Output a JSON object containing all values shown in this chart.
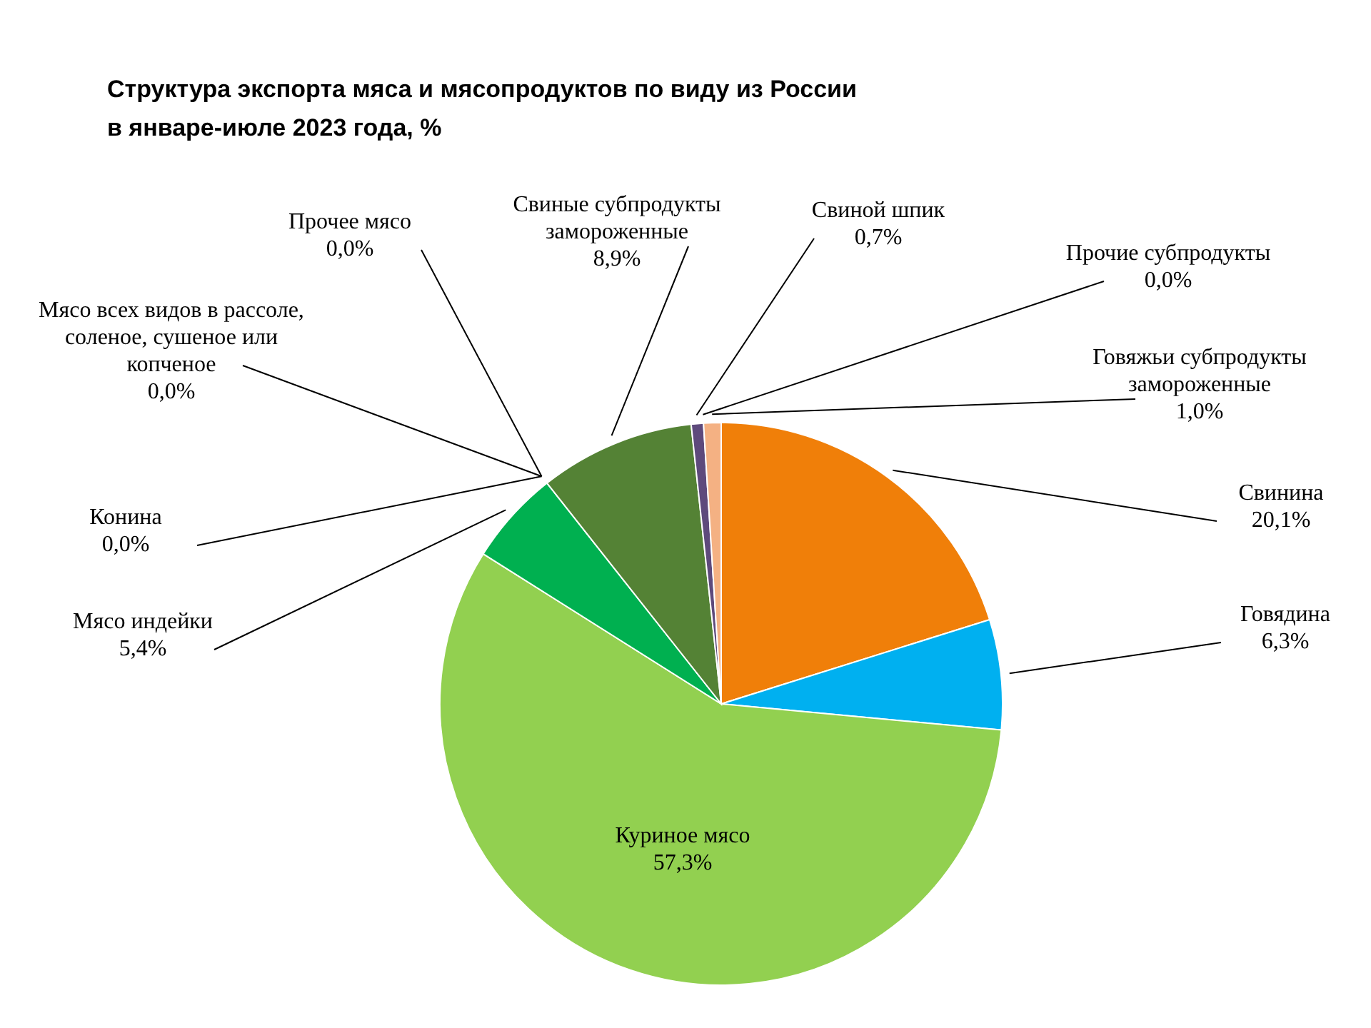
{
  "chart_data": {
    "type": "pie",
    "title": "Структура  экспорта  мяса  и мясопродуктов  по виду из России в январе-июле  2023 года, %",
    "categories": [
      "Свинина",
      "Говядина",
      "Куриное мясо",
      "Мясо индейки",
      "Конина",
      "Мясо всех видов в рассоле, соленое, сушеное или копченое",
      "Прочее мясо",
      "Свиные субпродукты замороженные",
      "Свиной шпик",
      "Прочие субпродукты",
      "Говяжьи субпродукты замороженные"
    ],
    "values": [
      20.1,
      6.3,
      57.3,
      5.4,
      0.0,
      0.0,
      0.0,
      8.9,
      0.7,
      0.0,
      1.0
    ],
    "value_labels": [
      "20,1%",
      "6,3%",
      "57,3%",
      "5,4%",
      "0,0%",
      "0,0%",
      "0,0%",
      "8,9%",
      "0,7%",
      "0,0%",
      "1,0%"
    ],
    "colors": [
      "#f07f09",
      "#00b0f0",
      "#92d050",
      "#00b050",
      null,
      null,
      null,
      "#548235",
      "#5e4a7c",
      null,
      "#f4b183"
    ]
  }
}
